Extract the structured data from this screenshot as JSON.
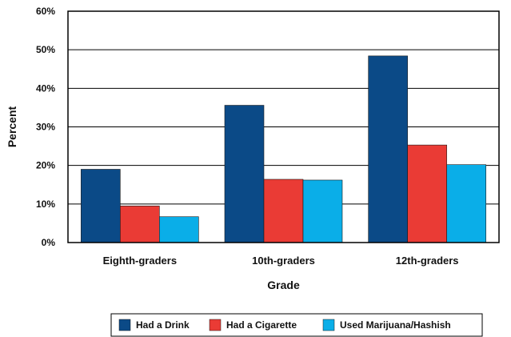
{
  "chart_data": {
    "type": "bar",
    "title": "",
    "xlabel": "Grade",
    "ylabel": "Percent",
    "categories": [
      "Eighth-graders",
      "10th-graders",
      "12th-graders"
    ],
    "series": [
      {
        "name": "Had a Drink",
        "color": "#0b4a87",
        "values": [
          19.0,
          35.6,
          48.4
        ]
      },
      {
        "name": "Had a Cigarette",
        "color": "#ea3b35",
        "values": [
          9.5,
          16.4,
          25.3
        ]
      },
      {
        "name": "Used Marijuana/Hashish",
        "color": "#0aaee8",
        "values": [
          6.7,
          16.2,
          20.2
        ]
      }
    ],
    "ylim": [
      0,
      60
    ],
    "yticks": [
      "0%",
      "10%",
      "20%",
      "30%",
      "40%",
      "50%",
      "60%"
    ],
    "grid": true,
    "legend_position": "bottom"
  }
}
